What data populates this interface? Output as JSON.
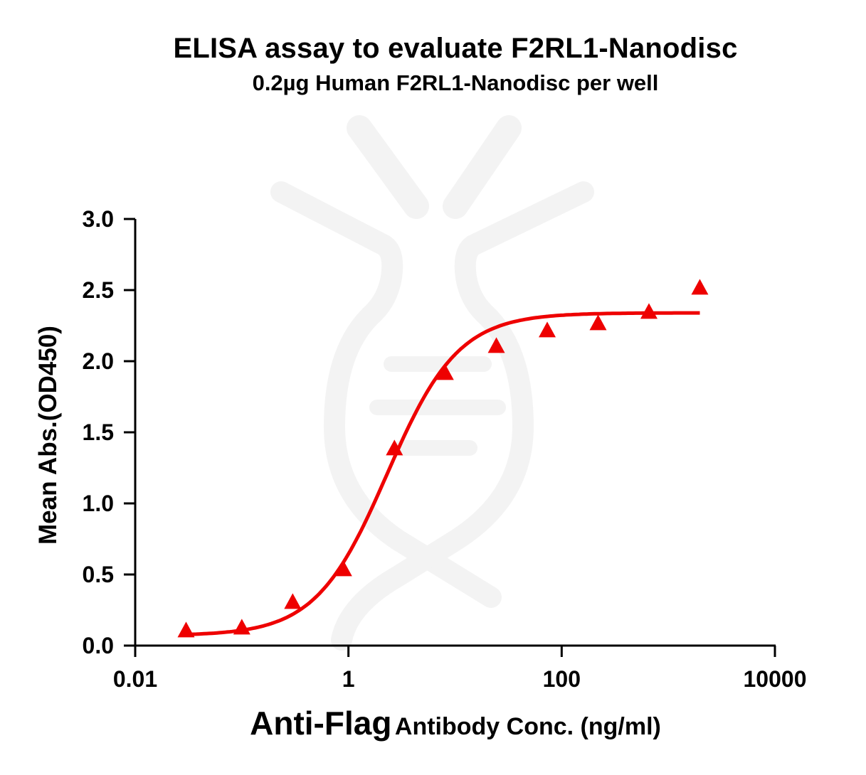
{
  "chart_data": {
    "type": "scatter",
    "title": "ELISA assay to evaluate F2RL1-Nanodisc",
    "subtitle": "0.2µg Human F2RL1-Nanodisc per well",
    "xlabel_bold": "Anti-Flag",
    "xlabel_rest": "Antibody Conc. (ng/ml)",
    "ylabel": "Mean Abs.(OD450)",
    "xscale": "log",
    "xlim": [
      0.01,
      10000
    ],
    "ylim": [
      0,
      3.0
    ],
    "x_ticks": [
      0.01,
      1,
      100,
      10000
    ],
    "x_tick_labels": [
      "0.01",
      "1",
      "100",
      "10000"
    ],
    "y_ticks": [
      0,
      0.5,
      1.0,
      1.5,
      2.0,
      2.5,
      3.0
    ],
    "y_tick_labels": [
      "0.0",
      "0.5",
      "1.0",
      "1.5",
      "2.0",
      "2.5",
      "3.0"
    ],
    "grid": false,
    "legend": "none",
    "series": [
      {
        "name": "F2RL1-Nanodisc",
        "marker": "triangle",
        "color": "#ee0000",
        "x": [
          0.03,
          0.1,
          0.3,
          0.9,
          2.7,
          8.1,
          24.4,
          73.2,
          219.5,
          658.4,
          1975.3
        ],
        "y": [
          0.1,
          0.12,
          0.3,
          0.53,
          1.38,
          1.91,
          2.1,
          2.21,
          2.26,
          2.34,
          2.51
        ]
      }
    ],
    "fit": {
      "type": "4PL",
      "color": "#ee0000",
      "bottom": 0.07,
      "top": 2.34,
      "ec50": 2.3,
      "hill": 1.3,
      "x_range": [
        0.03,
        1975.3
      ]
    }
  }
}
